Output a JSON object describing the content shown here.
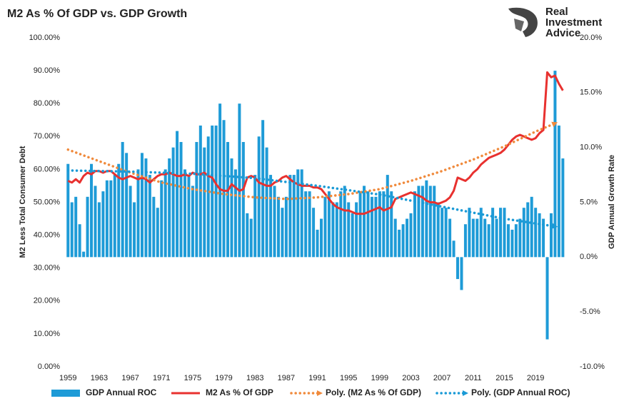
{
  "chart_data": {
    "type": "combo",
    "title": "M2 As % Of GDP vs. GDP Growth",
    "brand": [
      "Real",
      "Investment",
      "Advice"
    ],
    "ylabel": "M2 Less Total Consumer Debt",
    "y2label": "GDP Annual Growth Rate",
    "xlim": [
      1958.7,
      2024.3
    ],
    "xticks": [
      1959,
      1963,
      1967,
      1971,
      1975,
      1979,
      1983,
      1987,
      1991,
      1995,
      1999,
      2003,
      2007,
      2011,
      2015,
      2019
    ],
    "ylim": [
      0,
      100
    ],
    "yticks": [
      {
        "value": 0,
        "label": "0.00%"
      },
      {
        "value": 10,
        "label": "10.00%"
      },
      {
        "value": 20,
        "label": "20.00%"
      },
      {
        "value": 30,
        "label": "30.00%"
      },
      {
        "value": 40,
        "label": "40.00%"
      },
      {
        "value": 50,
        "label": "50.00%"
      },
      {
        "value": 60,
        "label": "60.00%"
      },
      {
        "value": 70,
        "label": "70.00%"
      },
      {
        "value": 80,
        "label": "80.00%"
      },
      {
        "value": 90,
        "label": "90.00%"
      },
      {
        "value": 100,
        "label": "100.00%"
      }
    ],
    "y2lim": [
      -10,
      20
    ],
    "y2ticks": [
      {
        "value": -10,
        "label": "-10.0%"
      },
      {
        "value": -5,
        "label": "-5.0%"
      },
      {
        "value": 0,
        "label": "0.0%"
      },
      {
        "value": 5,
        "label": "5.0%"
      },
      {
        "value": 10,
        "label": "10.0%"
      },
      {
        "value": 15,
        "label": "15.0%"
      },
      {
        "value": 20,
        "label": "20.0%"
      }
    ],
    "series": [
      {
        "name": "GDP Annual ROC",
        "type": "bar",
        "axis": "y2",
        "color": "#1e9bd7",
        "x": [
          1959,
          1959.5,
          1960,
          1960.5,
          1961,
          1961.5,
          1962,
          1962.5,
          1963,
          1963.5,
          1964,
          1964.5,
          1965,
          1965.5,
          1966,
          1966.5,
          1967,
          1967.5,
          1968,
          1968.5,
          1969,
          1969.5,
          1970,
          1970.5,
          1971,
          1971.5,
          1972,
          1972.5,
          1973,
          1973.5,
          1974,
          1974.5,
          1975,
          1975.5,
          1976,
          1976.5,
          1977,
          1977.5,
          1978,
          1978.5,
          1979,
          1979.5,
          1980,
          1980.5,
          1981,
          1981.5,
          1982,
          1982.5,
          1983,
          1983.5,
          1984,
          1984.5,
          1985,
          1985.5,
          1986,
          1986.5,
          1987,
          1987.5,
          1988,
          1988.5,
          1989,
          1989.5,
          1990,
          1990.5,
          1991,
          1991.5,
          1992,
          1992.5,
          1993,
          1993.5,
          1994,
          1994.5,
          1995,
          1995.5,
          1996,
          1996.5,
          1997,
          1997.5,
          1998,
          1998.5,
          1999,
          1999.5,
          2000,
          2000.5,
          2001,
          2001.5,
          2002,
          2002.5,
          2003,
          2003.5,
          2004,
          2004.5,
          2005,
          2005.5,
          2006,
          2006.5,
          2007,
          2007.5,
          2008,
          2008.5,
          2009,
          2009.5,
          2010,
          2010.5,
          2011,
          2011.5,
          2012,
          2012.5,
          2013,
          2013.5,
          2014,
          2014.5,
          2015,
          2015.5,
          2016,
          2016.5,
          2017,
          2017.5,
          2018,
          2018.5,
          2019,
          2019.5,
          2020,
          2020.5,
          2021,
          2021.5,
          2022,
          2022.5
        ],
        "values": [
          8.5,
          5.0,
          5.5,
          3.0,
          0.5,
          5.5,
          8.5,
          6.5,
          5.0,
          6.0,
          7.0,
          7.0,
          7.5,
          8.5,
          10.5,
          9.5,
          6.5,
          5.0,
          8.0,
          9.5,
          9.0,
          7.5,
          5.5,
          4.5,
          7.0,
          8.0,
          9.0,
          10.0,
          11.5,
          10.5,
          8.0,
          7.5,
          6.5,
          10.5,
          12.0,
          10.0,
          11.0,
          12.0,
          12.0,
          14.0,
          12.5,
          10.5,
          9.0,
          8.0,
          14.0,
          10.5,
          4.0,
          3.5,
          7.5,
          11.0,
          12.5,
          10.0,
          7.5,
          6.5,
          5.5,
          4.5,
          5.5,
          7.5,
          7.5,
          8.0,
          8.0,
          6.0,
          6.0,
          4.5,
          2.5,
          3.5,
          5.5,
          6.0,
          5.0,
          5.0,
          6.0,
          6.5,
          5.0,
          4.0,
          5.0,
          6.0,
          6.5,
          6.0,
          5.5,
          5.5,
          6.0,
          6.0,
          7.5,
          6.0,
          3.5,
          2.5,
          3.0,
          3.5,
          4.0,
          6.0,
          6.5,
          6.5,
          7.0,
          6.5,
          6.5,
          5.0,
          4.5,
          4.5,
          3.5,
          1.5,
          -2.0,
          -3.0,
          3.0,
          4.5,
          3.5,
          3.5,
          4.5,
          3.5,
          3.0,
          4.5,
          3.5,
          4.5,
          4.5,
          3.0,
          2.5,
          3.0,
          3.5,
          4.5,
          5.0,
          5.5,
          4.5,
          4.0,
          3.5,
          -7.5,
          4.0,
          17.0,
          12.0,
          9.0
        ]
      },
      {
        "name": "M2 As % Of GDP",
        "type": "line",
        "color": "#e8312f",
        "x": [
          1959,
          1959.5,
          1960,
          1960.5,
          1961,
          1961.5,
          1962,
          1962.5,
          1963,
          1963.5,
          1964,
          1964.5,
          1965,
          1965.5,
          1966,
          1966.5,
          1967,
          1967.5,
          1968,
          1968.5,
          1969,
          1969.5,
          1970,
          1970.5,
          1971,
          1971.5,
          1972,
          1972.5,
          1973,
          1973.5,
          1974,
          1974.5,
          1975,
          1975.5,
          1976,
          1976.5,
          1977,
          1977.5,
          1978,
          1978.5,
          1979,
          1979.5,
          1980,
          1980.5,
          1981,
          1981.5,
          1982,
          1982.5,
          1983,
          1983.5,
          1984,
          1984.5,
          1985,
          1985.5,
          1986,
          1986.5,
          1987,
          1987.5,
          1988,
          1988.5,
          1989,
          1989.5,
          1990,
          1990.5,
          1991,
          1991.5,
          1992,
          1992.5,
          1993,
          1993.5,
          1994,
          1994.5,
          1995,
          1995.5,
          1996,
          1996.5,
          1997,
          1997.5,
          1998,
          1998.5,
          1999,
          1999.5,
          2000,
          2000.5,
          2001,
          2001.5,
          2002,
          2002.5,
          2003,
          2003.5,
          2004,
          2004.5,
          2005,
          2005.5,
          2006,
          2006.5,
          2007,
          2007.5,
          2008,
          2008.5,
          2009,
          2009.5,
          2010,
          2010.5,
          2011,
          2011.5,
          2012,
          2012.5,
          2013,
          2013.5,
          2014,
          2014.5,
          2015,
          2015.5,
          2016,
          2016.5,
          2017,
          2017.5,
          2018,
          2018.5,
          2019,
          2019.5,
          2020,
          2020.5,
          2021,
          2021.5,
          2022,
          2022.5
        ],
        "values": [
          56.5,
          56.0,
          57.0,
          56.0,
          58.0,
          59.0,
          58.5,
          59.5,
          59.5,
          59.0,
          59.5,
          59.5,
          58.5,
          57.5,
          57.0,
          57.5,
          58.0,
          57.5,
          57.0,
          57.5,
          57.0,
          56.0,
          57.0,
          58.0,
          58.5,
          58.5,
          59.0,
          58.5,
          58.0,
          58.0,
          58.5,
          58.0,
          59.0,
          58.5,
          58.5,
          59.0,
          58.0,
          57.5,
          55.5,
          54.0,
          53.5,
          53.5,
          55.5,
          54.5,
          53.5,
          54.0,
          57.5,
          58.0,
          57.5,
          56.0,
          55.5,
          55.0,
          55.0,
          56.0,
          56.5,
          57.5,
          58.0,
          57.0,
          56.0,
          55.5,
          55.0,
          55.0,
          55.0,
          54.5,
          54.5,
          54.0,
          52.5,
          51.0,
          49.5,
          48.5,
          48.0,
          47.5,
          47.5,
          47.0,
          46.5,
          46.5,
          46.5,
          47.0,
          47.5,
          48.0,
          48.5,
          47.5,
          48.0,
          48.5,
          51.0,
          51.5,
          52.0,
          52.5,
          53.0,
          52.5,
          52.0,
          51.5,
          50.5,
          50.0,
          50.0,
          49.5,
          50.0,
          50.5,
          51.5,
          53.5,
          57.5,
          57.0,
          56.5,
          57.5,
          59.0,
          60.0,
          61.5,
          62.5,
          63.5,
          64.0,
          64.5,
          65.0,
          66.0,
          67.5,
          69.0,
          70.0,
          70.5,
          70.0,
          69.5,
          69.0,
          69.5,
          71.0,
          72.0,
          89.5,
          88.0,
          88.5,
          86.0,
          84.0
        ]
      },
      {
        "name": "Poly. (M2 As % Of GDP)",
        "type": "line",
        "line_style": "dotted",
        "arrow": true,
        "color": "#f08a3c",
        "x": [
          1959,
          1963,
          1967,
          1971,
          1975,
          1979,
          1983,
          1987,
          1991,
          1995,
          1999,
          2003,
          2007,
          2011,
          2015,
          2019,
          2021.5
        ],
        "values": [
          66,
          62.5,
          59,
          56,
          54,
          52.5,
          51.5,
          51,
          51.5,
          52.5,
          54,
          56.5,
          59.5,
          63,
          67,
          71.5,
          74
        ]
      },
      {
        "name": "Poly. (GDP Annual ROC)",
        "type": "line",
        "line_style": "dotted",
        "arrow": true,
        "axis": "y2",
        "color": "#1a9ad6",
        "x": [
          1959,
          1967,
          1975,
          1983,
          1991,
          1999,
          2007,
          2015,
          2021.5
        ],
        "values": [
          7.9,
          7.8,
          7.6,
          7.2,
          6.5,
          5.7,
          4.6,
          3.5,
          2.8
        ]
      }
    ]
  }
}
